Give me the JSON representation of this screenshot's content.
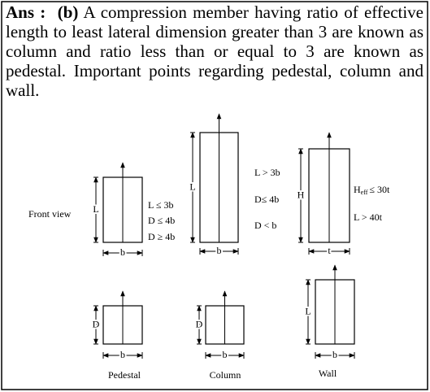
{
  "answer": {
    "label": "Ans :",
    "option": "(b)",
    "text": "A compression member having ratio of effective length to least lateral dimension greater than 3 are known as column and ratio less than or equal to 3 are known as pedestal. Important points regarding pedestal, column and wall."
  },
  "diagram": {
    "front_view": "Front view",
    "pedestal": {
      "caption": "Pedestal",
      "front": {
        "height": "L",
        "width": "b",
        "conditions": [
          "L ≤ 3b",
          "D ≤ 4b",
          "D ≥ 4b"
        ]
      },
      "side": {
        "height": "D",
        "width": "b"
      }
    },
    "column": {
      "caption": "Column",
      "front": {
        "height": "L",
        "width": "b",
        "conditions": [
          "L > 3b",
          "D≤ 4b",
          "D < b"
        ]
      },
      "side": {
        "height": "D",
        "width": "b"
      }
    },
    "wall": {
      "caption": "Wall",
      "front": {
        "height": "H",
        "width": "t",
        "condition_heff": {
          "symbol": "H",
          "subscript": "eff",
          "relation": "≤ 30t"
        },
        "conditions": [
          "L > 40t"
        ]
      },
      "side": {
        "height": "L",
        "width": "b"
      }
    }
  }
}
